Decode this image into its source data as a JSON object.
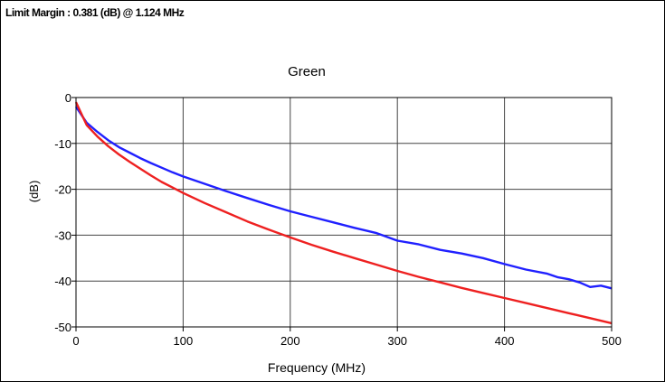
{
  "limit_margin_text": "Limit Margin : 0.381 (dB) @ 1.124 MHz",
  "colors": {
    "measured": "#2020ff",
    "limit": "#ee2020",
    "grid": "#444444",
    "axis": "#000000"
  },
  "chart_data": {
    "type": "line",
    "title": "Green",
    "xlabel": "Frequency (MHz)",
    "ylabel": "(dB)",
    "xlim": [
      0,
      500
    ],
    "ylim": [
      -50,
      0
    ],
    "xticks": [
      0,
      100,
      200,
      300,
      400,
      500
    ],
    "yticks": [
      0,
      -10,
      -20,
      -30,
      -40,
      -50
    ],
    "grid": true,
    "series": [
      {
        "color": "#2020ff",
        "x": [
          0,
          10,
          20,
          30,
          40,
          50,
          60,
          70,
          80,
          90,
          100,
          120,
          140,
          160,
          180,
          200,
          220,
          240,
          260,
          280,
          300,
          320,
          340,
          360,
          380,
          400,
          420,
          440,
          450,
          460,
          470,
          480,
          490,
          500
        ],
        "y": [
          -2.0,
          -5.5,
          -7.5,
          -9.3,
          -10.8,
          -12.0,
          -13.2,
          -14.3,
          -15.3,
          -16.3,
          -17.2,
          -18.8,
          -20.4,
          -21.9,
          -23.4,
          -24.8,
          -26.0,
          -27.2,
          -28.4,
          -29.5,
          -31.2,
          -32.0,
          -33.2,
          -34.0,
          -35.0,
          -36.3,
          -37.5,
          -38.4,
          -39.2,
          -39.6,
          -40.3,
          -41.3,
          -41.0,
          -41.6
        ]
      },
      {
        "color": "#ee2020",
        "x": [
          0,
          10,
          20,
          30,
          40,
          50,
          60,
          70,
          80,
          90,
          100,
          120,
          140,
          160,
          180,
          200,
          220,
          240,
          260,
          280,
          300,
          320,
          340,
          360,
          380,
          400,
          420,
          440,
          460,
          480,
          500
        ],
        "y": [
          -1.0,
          -6.0,
          -8.5,
          -10.6,
          -12.4,
          -14.0,
          -15.5,
          -17.0,
          -18.4,
          -19.6,
          -20.8,
          -23.0,
          -25.0,
          -27.0,
          -28.8,
          -30.5,
          -32.1,
          -33.6,
          -35.0,
          -36.4,
          -37.8,
          -39.1,
          -40.3,
          -41.5,
          -42.6,
          -43.7,
          -44.8,
          -45.9,
          -47.0,
          -48.1,
          -49.2
        ]
      }
    ]
  }
}
